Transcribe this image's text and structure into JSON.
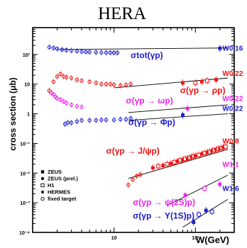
{
  "chart_data": {
    "type": "scatter",
    "title": "HERA",
    "xlabel": "W(GeV)",
    "ylabel": "cross section (μb)",
    "xscale": "log",
    "yscale": "log",
    "xlim": [
      1,
      300
    ],
    "ylim": [
      0.0001,
      800
    ],
    "xticks": [
      {
        "value": 10,
        "label": "10"
      },
      {
        "value": 100,
        "label": "10²"
      }
    ],
    "yticks": [
      {
        "value": 100,
        "label": "10²"
      },
      {
        "value": 10,
        "label": "10"
      },
      {
        "value": 1,
        "label": "1"
      },
      {
        "value": 0.1,
        "label": "10⁻¹"
      },
      {
        "value": 0.01,
        "label": "10⁻²"
      },
      {
        "value": 0.001,
        "label": "10⁻³"
      },
      {
        "value": 0.0001,
        "label": "10⁻⁴"
      }
    ],
    "legend": {
      "position": "bottom-left",
      "entries": [
        {
          "marker": "filled-square",
          "label": "ZEUS"
        },
        {
          "marker": "filled-circle",
          "label": "ZEUS (prel.)"
        },
        {
          "marker": "open-square",
          "label": "H1"
        },
        {
          "marker": "star",
          "label": "HERMES"
        },
        {
          "marker": "open-circle",
          "label": "fixed target"
        }
      ]
    },
    "series": [
      {
        "label": "σtot(γp)",
        "power_label": "W0.16",
        "color": "#1a1acc",
        "fit": {
          "x": [
            2,
            250
          ],
          "y": [
            147,
            165
          ]
        },
        "label_at": {
          "x": 16,
          "y": 75
        },
        "power_at": {
          "x": 215,
          "y": 135
        },
        "fixed_target": [
          [
            1.6,
            175
          ],
          [
            1.8,
            165
          ],
          [
            2.0,
            155
          ],
          [
            2.3,
            145
          ],
          [
            2.6,
            140
          ],
          [
            3.0,
            135
          ],
          [
            3.5,
            130
          ],
          [
            4,
            125
          ],
          [
            4.5,
            122
          ],
          [
            5,
            120
          ],
          [
            6,
            118
          ],
          [
            7,
            116
          ],
          [
            8,
            115
          ],
          [
            9,
            115
          ],
          [
            10,
            114
          ],
          [
            11,
            114
          ]
        ],
        "hera": [
          [
            200,
            160
          ]
        ]
      },
      {
        "label": "σ(γp → ρp)",
        "power_label": "W0.22",
        "color": "#ee1111",
        "fit": {
          "x": [
            10,
            250
          ],
          "y": [
            7.5,
            16
          ]
        },
        "label_at": {
          "x": 65,
          "y": 5
        },
        "power_at": {
          "x": 215,
          "y": 19
        },
        "fixed_target": [
          [
            1.6,
            6
          ],
          [
            1.8,
            12
          ],
          [
            2.0,
            18
          ],
          [
            2.2,
            22
          ],
          [
            2.4,
            18
          ],
          [
            2.6,
            17
          ],
          [
            3.0,
            16
          ],
          [
            3.5,
            14
          ],
          [
            4,
            13
          ],
          [
            5,
            12
          ],
          [
            6,
            11
          ],
          [
            7,
            10
          ],
          [
            8,
            10
          ],
          [
            9,
            10
          ],
          [
            10,
            9.5
          ],
          [
            12,
            9
          ],
          [
            14,
            9.5
          ],
          [
            16,
            10
          ]
        ],
        "hera": [
          [
            70,
            11
          ],
          [
            100,
            11
          ],
          [
            120,
            12
          ],
          [
            140,
            13
          ],
          [
            180,
            14
          ]
        ]
      },
      {
        "label": "σ(γp → ωp)",
        "power_label": "W0.22",
        "color": "#ee22ee",
        "fit": {
          "x": [
            15,
            250
          ],
          "y": [
            1.1,
            2.0
          ]
        },
        "label_at": {
          "x": 14,
          "y": 2.2
        },
        "power_at": {
          "x": 215,
          "y": 2.7
        },
        "fixed_target": [
          [
            1.7,
            5
          ],
          [
            1.8,
            4.5
          ],
          [
            1.9,
            3.8
          ],
          [
            2.0,
            3.3
          ],
          [
            2.2,
            3.0
          ],
          [
            2.4,
            2.6
          ],
          [
            2.6,
            2.3
          ],
          [
            3.0,
            2.0
          ],
          [
            3.5,
            1.8
          ],
          [
            4,
            1.7
          ]
        ],
        "hera": [
          [
            80,
            1.5
          ]
        ]
      },
      {
        "label": "σ(γp → Φp)",
        "power_label": "W0.22",
        "color": "#1a1acc",
        "fit": {
          "x": [
            15,
            250
          ],
          "y": [
            0.6,
            1.0
          ]
        },
        "label_at": {
          "x": 15,
          "y": 0.42
        },
        "power_at": {
          "x": 215,
          "y": 1.25
        },
        "fixed_target": [
          [
            2.5,
            0.45
          ],
          [
            2.7,
            0.5
          ],
          [
            3.0,
            0.5
          ],
          [
            3.5,
            0.55
          ],
          [
            4,
            0.6
          ],
          [
            5,
            0.6
          ],
          [
            6,
            0.6
          ],
          [
            7,
            0.62
          ],
          [
            8,
            0.62
          ],
          [
            10,
            0.62
          ],
          [
            12,
            0.65
          ],
          [
            14,
            0.65
          ],
          [
            16,
            0.7
          ]
        ],
        "hera": [
          [
            70,
            0.9
          ]
        ]
      },
      {
        "label": "σ(γp → J/ψp)",
        "power_label": "W0.8",
        "color": "#ee1111",
        "fit": {
          "x": [
            15,
            250
          ],
          "y": [
            0.0066,
            0.063
          ]
        },
        "label_at": {
          "x": 8,
          "y": 0.045
        },
        "power_at": {
          "x": 215,
          "y": 0.1
        },
        "fixed_target": [
          [
            15,
            0.004
          ],
          [
            17,
            0.006
          ],
          [
            19,
            0.008
          ],
          [
            21,
            0.009
          ]
        ],
        "hera": [
          [
            30,
            0.015
          ],
          [
            35,
            0.017
          ],
          [
            40,
            0.018
          ],
          [
            45,
            0.02
          ],
          [
            50,
            0.021
          ],
          [
            55,
            0.023
          ],
          [
            60,
            0.025
          ],
          [
            65,
            0.027
          ],
          [
            70,
            0.028
          ],
          [
            75,
            0.03
          ],
          [
            80,
            0.031
          ],
          [
            85,
            0.033
          ],
          [
            90,
            0.035
          ],
          [
            95,
            0.037
          ],
          [
            100,
            0.038
          ],
          [
            110,
            0.041
          ],
          [
            120,
            0.044
          ],
          [
            130,
            0.047
          ],
          [
            140,
            0.05
          ],
          [
            150,
            0.052
          ],
          [
            160,
            0.056
          ],
          [
            170,
            0.059
          ],
          [
            180,
            0.062
          ],
          [
            190,
            0.065
          ],
          [
            200,
            0.067
          ],
          [
            210,
            0.07
          ],
          [
            220,
            0.073
          ],
          [
            235,
            0.078
          ]
        ]
      },
      {
        "label": "σ(γp → ψ(2S)p)",
        "power_label": "W1.1",
        "color": "#ee22ee",
        "fit": {
          "x": [
            45,
            250
          ],
          "y": [
            0.00081,
            0.0085
          ]
        },
        "label_at": {
          "x": 17,
          "y": 0.00082
        },
        "power_at": {
          "x": 215,
          "y": 0.016
        },
        "fixed_target": [],
        "hera": [
          [
            75,
            0.0018
          ],
          [
            130,
            0.003
          ],
          [
            200,
            0.0042
          ]
        ]
      },
      {
        "label": "σ(γp → Υ(1S)p)",
        "power_label": "W1.6",
        "color": "#1a1acc",
        "fit": {
          "x": [
            70,
            250
          ],
          "y": [
            0.00015,
            0.0013
          ]
        },
        "label_at": {
          "x": 17,
          "y": 0.00029
        },
        "power_at": {
          "x": 215,
          "y": 0.0025
        },
        "fixed_target": [],
        "hera": [
          [
            95,
            0.00022
          ],
          [
            110,
            0.0004
          ],
          [
            135,
            0.00055
          ],
          [
            160,
            0.0005
          ]
        ]
      }
    ]
  }
}
